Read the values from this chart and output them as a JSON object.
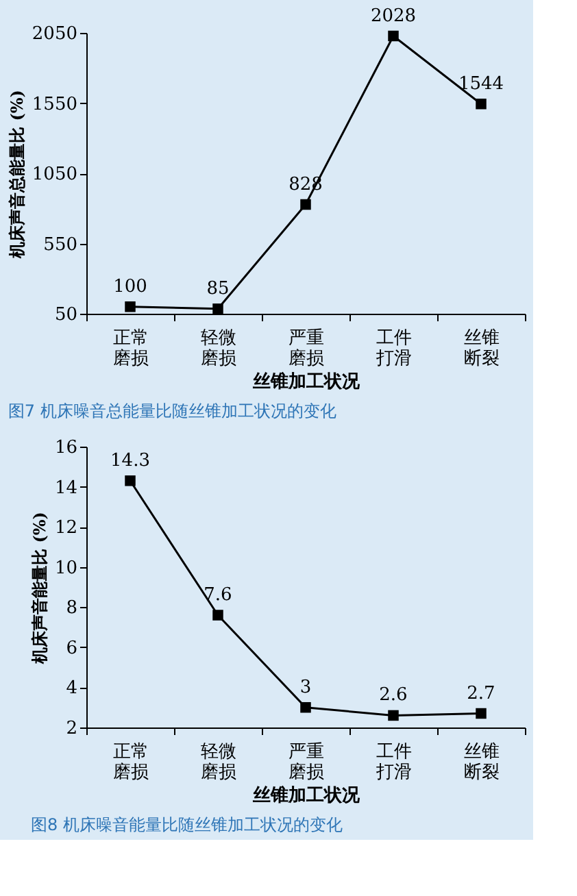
{
  "chart_data": [
    {
      "type": "line",
      "categories": [
        "正常磨损",
        "轻微磨损",
        "严重磨损",
        "工件打滑",
        "丝锥断裂"
      ],
      "series": [
        {
          "color": "#000000",
          "values": [
            100,
            85,
            828,
            2028,
            1544
          ]
        }
      ],
      "xlabel": "丝锥加工状况",
      "ylabel": "机床声音总能量比 (%)",
      "ylim": [
        50,
        2050
      ],
      "yticks": [
        50,
        550,
        1050,
        1550,
        2050
      ],
      "grid": false,
      "marker": "square",
      "line_style": "solid",
      "data_labels": true,
      "annotations": [
        "图7  机床噪音总能量比随丝锥加工状况的变化"
      ]
    },
    {
      "type": "line",
      "categories": [
        "正常磨损",
        "轻微磨损",
        "严重磨损",
        "工件打滑",
        "丝锥断裂"
      ],
      "series": [
        {
          "color": "#000000",
          "values": [
            14.3,
            7.6,
            3,
            2.6,
            2.7
          ]
        }
      ],
      "xlabel": "丝锥加工状况",
      "ylabel": "机床声音能量比 (%)",
      "ylim": [
        2,
        16
      ],
      "yticks": [
        2,
        4,
        6,
        8,
        10,
        12,
        14,
        16
      ],
      "grid": false,
      "marker": "square",
      "line_style": "solid",
      "data_labels": true,
      "annotations": [
        "图8  机床噪音能量比随丝锥加工状况的变化"
      ]
    }
  ]
}
